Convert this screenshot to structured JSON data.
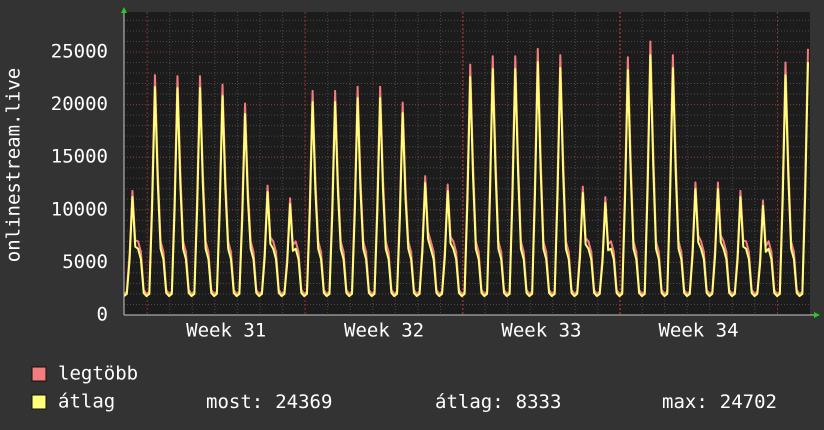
{
  "chart_data": {
    "type": "line",
    "y_label": "onlinestream.live",
    "xlim": [
      0,
      243
    ],
    "ylim": [
      0,
      28800
    ],
    "xticks": [
      {
        "value": 36.3,
        "label": "Week 31"
      },
      {
        "value": 92.4,
        "label": "Week 32"
      },
      {
        "value": 148.3,
        "label": "Week 33"
      },
      {
        "value": 204.1,
        "label": "Week 34"
      }
    ],
    "yticks": [
      0,
      5000,
      10000,
      15000,
      20000,
      25000
    ],
    "grid": true,
    "series": [
      {
        "name": "legtöbb",
        "color": "#f57c7c",
        "values": [
          2000,
          2200,
          5900,
          11800,
          7080,
          7000,
          6000,
          2400,
          2000,
          2200,
          11400,
          22800,
          13680,
          7000,
          6000,
          2400,
          2000,
          2200,
          11350,
          22700,
          13620,
          7000,
          6000,
          2400,
          2000,
          2200,
          11350,
          22700,
          13620,
          7000,
          6000,
          2400,
          2000,
          2200,
          10950,
          21900,
          13140,
          7000,
          6000,
          2400,
          2000,
          2200,
          10050,
          20100,
          12060,
          7000,
          6000,
          2400,
          2000,
          2200,
          6150,
          12300,
          7380,
          7000,
          6000,
          2400,
          2000,
          2200,
          5550,
          11100,
          6660,
          7000,
          6000,
          2400,
          2000,
          2200,
          10650,
          21300,
          12780,
          7000,
          6000,
          2400,
          2000,
          2200,
          10650,
          21300,
          12780,
          7000,
          6000,
          2400,
          2000,
          2200,
          10850,
          21700,
          13020,
          7000,
          6000,
          2400,
          2000,
          2200,
          10850,
          21700,
          13020,
          7000,
          6000,
          2400,
          2000,
          2200,
          10100,
          20200,
          12120,
          7000,
          6000,
          2400,
          2000,
          2200,
          6600,
          13200,
          7920,
          7000,
          6000,
          2400,
          2000,
          2200,
          6200,
          12400,
          7440,
          7000,
          6000,
          2400,
          2000,
          2200,
          11900,
          23800,
          14280,
          7000,
          6000,
          2400,
          2000,
          2200,
          12300,
          24600,
          14760,
          7000,
          6000,
          2400,
          2000,
          2200,
          12300,
          24600,
          14760,
          7000,
          6000,
          2400,
          2000,
          2200,
          12650,
          25300,
          15180,
          7000,
          6000,
          2400,
          2000,
          2200,
          12350,
          24700,
          14820,
          7000,
          6000,
          2400,
          2000,
          2200,
          6100,
          12200,
          7320,
          7000,
          6000,
          2400,
          2000,
          2200,
          5600,
          11200,
          6720,
          7000,
          6000,
          2400,
          2000,
          2200,
          12250,
          24500,
          14700,
          7000,
          6000,
          2400,
          2000,
          2200,
          13000,
          26000,
          15600,
          7000,
          6000,
          2400,
          2000,
          2200,
          12350,
          24700,
          14820,
          7000,
          6000,
          2400,
          2000,
          2200,
          6300,
          12600,
          7560,
          7000,
          6000,
          2400,
          2000,
          2200,
          6300,
          12600,
          7560,
          7000,
          6000,
          2400,
          2000,
          2200,
          5900,
          11800,
          7080,
          7000,
          6000,
          2400,
          2000,
          2200,
          5450,
          10900,
          6540,
          7000,
          6000,
          2400,
          2000,
          2200,
          12000,
          24000,
          14400,
          7000,
          6000,
          2400,
          2000,
          2200,
          12650,
          25300
        ]
      },
      {
        "name": "átlag",
        "color": "#ffff7a",
        "values": [
          1800,
          2000,
          5310,
          11210,
          6490,
          6300,
          5300,
          2100,
          1800,
          2000,
          10260,
          21660,
          12540,
          6300,
          5300,
          2100,
          1800,
          2000,
          10215,
          21565,
          12485,
          6300,
          5300,
          2100,
          1800,
          2000,
          10215,
          21565,
          12485,
          6300,
          5300,
          2100,
          1800,
          2000,
          9855,
          20805,
          12045,
          6300,
          5300,
          2100,
          1800,
          2000,
          9045,
          19095,
          11055,
          6300,
          5300,
          2100,
          1800,
          2000,
          5535,
          11685,
          6765,
          6300,
          5300,
          2100,
          1800,
          2000,
          4995,
          10545,
          6105,
          6300,
          5300,
          2100,
          1800,
          2000,
          9585,
          20235,
          11715,
          6300,
          5300,
          2100,
          1800,
          2000,
          9585,
          20235,
          11715,
          6300,
          5300,
          2100,
          1800,
          2000,
          9765,
          20615,
          11935,
          6300,
          5300,
          2100,
          1800,
          2000,
          9765,
          20615,
          11935,
          6300,
          5300,
          2100,
          1800,
          2000,
          9090,
          19190,
          11110,
          6300,
          5300,
          2100,
          1800,
          2000,
          5940,
          12540,
          7260,
          6300,
          5300,
          2100,
          1800,
          2000,
          5580,
          11780,
          6820,
          6300,
          5300,
          2100,
          1800,
          2000,
          10710,
          22610,
          13090,
          6300,
          5300,
          2100,
          1800,
          2000,
          11070,
          23370,
          13530,
          6300,
          5300,
          2100,
          1800,
          2000,
          11070,
          23370,
          13530,
          6300,
          5300,
          2100,
          1800,
          2000,
          11385,
          24035,
          13915,
          6300,
          5300,
          2100,
          1800,
          2000,
          11115,
          23465,
          13585,
          6300,
          5300,
          2100,
          1800,
          2000,
          5490,
          11590,
          6710,
          6300,
          5300,
          2100,
          1800,
          2000,
          5040,
          10640,
          6160,
          6300,
          5300,
          2100,
          1800,
          2000,
          11025,
          23275,
          13475,
          6300,
          5300,
          2100,
          1800,
          2000,
          11700,
          24700,
          14300,
          6300,
          5300,
          2100,
          1800,
          2000,
          11115,
          23465,
          13585,
          6300,
          5300,
          2100,
          1800,
          2000,
          5670,
          11970,
          6930,
          6300,
          5300,
          2100,
          1800,
          2000,
          5670,
          11970,
          6930,
          6300,
          5300,
          2100,
          1800,
          2000,
          5310,
          11210,
          6490,
          6300,
          5300,
          2100,
          1800,
          2000,
          4905,
          10355,
          5995,
          6300,
          5300,
          2100,
          1800,
          2000,
          10800,
          22800,
          13200,
          6300,
          5300,
          2100,
          1800,
          2000,
          11385,
          24035
        ]
      }
    ],
    "stats": [
      {
        "label": "most:",
        "value": 24369
      },
      {
        "label": "átlag:",
        "value": 8333
      },
      {
        "label": "max:",
        "value": 24702
      }
    ]
  }
}
